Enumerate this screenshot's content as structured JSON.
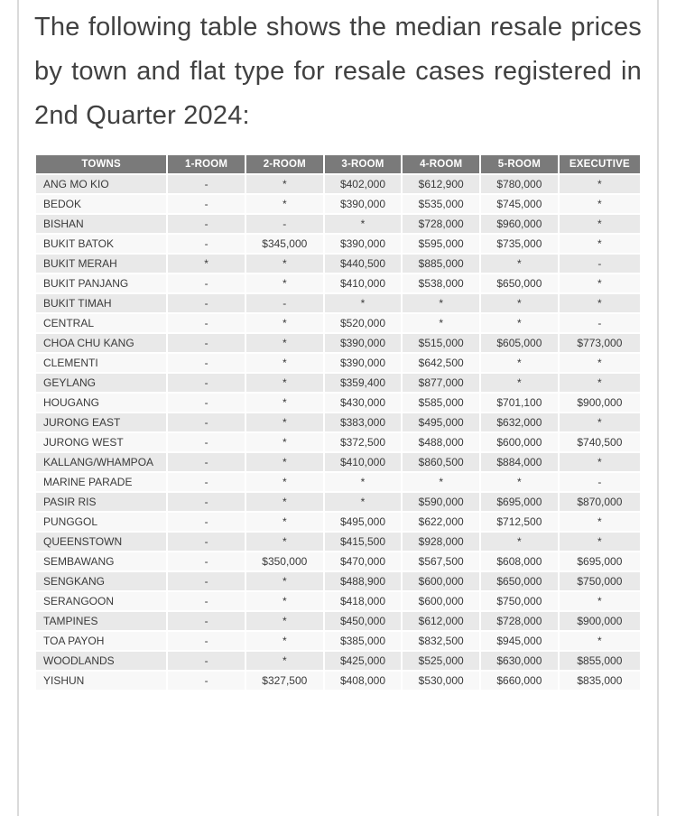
{
  "heading": {
    "text": "The following table shows the median resale prices by town and flat type for resale cases registered in 2nd Quarter 2024:"
  },
  "table": {
    "columns": [
      "TOWNS",
      "1-ROOM",
      "2-ROOM",
      "3-ROOM",
      "4-ROOM",
      "5-ROOM",
      "EXECUTIVE"
    ],
    "rows": [
      [
        "ANG MO KIO",
        "-",
        "*",
        "$402,000",
        "$612,900",
        "$780,000",
        "*"
      ],
      [
        "BEDOK",
        "-",
        "*",
        "$390,000",
        "$535,000",
        "$745,000",
        "*"
      ],
      [
        "BISHAN",
        "-",
        "-",
        "*",
        "$728,000",
        "$960,000",
        "*"
      ],
      [
        "BUKIT BATOK",
        "-",
        "$345,000",
        "$390,000",
        "$595,000",
        "$735,000",
        "*"
      ],
      [
        "BUKIT MERAH",
        "*",
        "*",
        "$440,500",
        "$885,000",
        "*",
        "-"
      ],
      [
        "BUKIT PANJANG",
        "-",
        "*",
        "$410,000",
        "$538,000",
        "$650,000",
        "*"
      ],
      [
        "BUKIT TIMAH",
        "-",
        "-",
        "*",
        "*",
        "*",
        "*"
      ],
      [
        "CENTRAL",
        "-",
        "*",
        "$520,000",
        "*",
        "*",
        "-"
      ],
      [
        "CHOA CHU KANG",
        "-",
        "*",
        "$390,000",
        "$515,000",
        "$605,000",
        "$773,000"
      ],
      [
        "CLEMENTI",
        "-",
        "*",
        "$390,000",
        "$642,500",
        "*",
        "*"
      ],
      [
        "GEYLANG",
        "-",
        "*",
        "$359,400",
        "$877,000",
        "*",
        "*"
      ],
      [
        "HOUGANG",
        "-",
        "*",
        "$430,000",
        "$585,000",
        "$701,100",
        "$900,000"
      ],
      [
        "JURONG EAST",
        "-",
        "*",
        "$383,000",
        "$495,000",
        "$632,000",
        "*"
      ],
      [
        "JURONG WEST",
        "-",
        "*",
        "$372,500",
        "$488,000",
        "$600,000",
        "$740,500"
      ],
      [
        "KALLANG/WHAMPOA",
        "-",
        "*",
        "$410,000",
        "$860,500",
        "$884,000",
        "*"
      ],
      [
        "MARINE PARADE",
        "-",
        "*",
        "*",
        "*",
        "*",
        "-"
      ],
      [
        "PASIR RIS",
        "-",
        "*",
        "*",
        "$590,000",
        "$695,000",
        "$870,000"
      ],
      [
        "PUNGGOL",
        "-",
        "*",
        "$495,000",
        "$622,000",
        "$712,500",
        "*"
      ],
      [
        "QUEENSTOWN",
        "-",
        "*",
        "$415,500",
        "$928,000",
        "*",
        "*"
      ],
      [
        "SEMBAWANG",
        "-",
        "$350,000",
        "$470,000",
        "$567,500",
        "$608,000",
        "$695,000"
      ],
      [
        "SENGKANG",
        "-",
        "*",
        "$488,900",
        "$600,000",
        "$650,000",
        "$750,000"
      ],
      [
        "SERANGOON",
        "-",
        "*",
        "$418,000",
        "$600,000",
        "$750,000",
        "*"
      ],
      [
        "TAMPINES",
        "-",
        "*",
        "$450,000",
        "$612,000",
        "$728,000",
        "$900,000"
      ],
      [
        "TOA PAYOH",
        "-",
        "*",
        "$385,000",
        "$832,500",
        "$945,000",
        "*"
      ],
      [
        "WOODLANDS",
        "-",
        "*",
        "$425,000",
        "$525,000",
        "$630,000",
        "$855,000"
      ],
      [
        "YISHUN",
        "-",
        "$327,500",
        "$408,000",
        "$530,000",
        "$660,000",
        "$835,000"
      ]
    ]
  },
  "theme": {
    "header_bg": "#7a7a7a",
    "header_text": "#ffffff",
    "row_odd_bg": "#e9e9e9",
    "row_even_bg": "#f8f8f8",
    "cell_text": "#3a3a3a",
    "heading_text": "#414141",
    "container_border": "#dadada"
  }
}
